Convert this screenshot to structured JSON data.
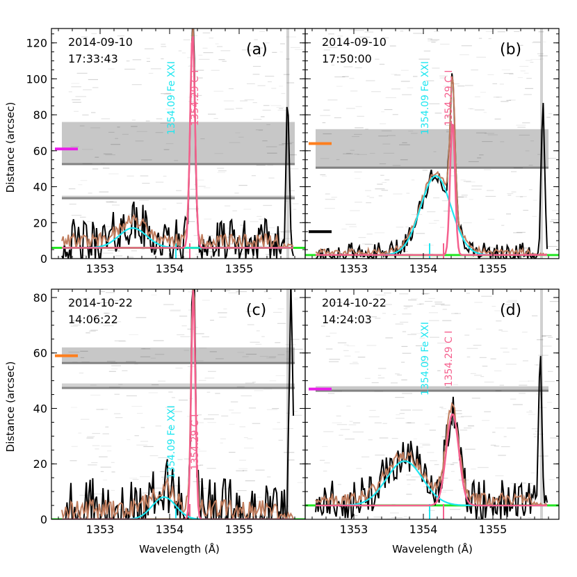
{
  "chart_data": {
    "type": "line",
    "xlabel": "Wavelength (Å)",
    "ylabel": "Distance (arcsec)",
    "x_ticks": [
      1353,
      1354,
      1355
    ],
    "xlim": [
      1352.3,
      1355.95
    ],
    "colors": {
      "observed": "#000000",
      "total_fit": "#c07d5e",
      "fe_fit": "#1ee6f0",
      "c_fit": "#f5608e",
      "background": "#22e622",
      "marker_magenta": "#e81ee8",
      "marker_orange": "#ff7f1e"
    },
    "panels": [
      {
        "id": "a",
        "label": "(a)",
        "date": "2014-09-10",
        "time": "17:33:43",
        "ylim": [
          0,
          128
        ],
        "y_ticks": [
          0,
          20,
          40,
          60,
          80,
          100,
          120
        ],
        "line_labels": [
          "1354.09 Fe XXI",
          "1354.29 C I"
        ],
        "band_rows": [
          [
            52,
            76
          ],
          [
            33,
            35
          ]
        ],
        "marker": {
          "color": "magenta",
          "y": 61,
          "x": [
            1352.35,
            1352.68
          ]
        },
        "background_level": 6,
        "fe": {
          "center": 1353.47,
          "amp": 11,
          "sigma": 0.2
        },
        "c": {
          "center": 1354.33,
          "amp": 120,
          "sigma": 0.035
        },
        "ticks_at": [
          1354.09,
          1354.29
        ],
        "edge_peak": {
          "center": 1355.7,
          "height": 86
        },
        "noise_amp": 14
      },
      {
        "id": "b",
        "label": "(b)",
        "date": "2014-09-10",
        "time": "17:50:00",
        "ylim": [
          0,
          128
        ],
        "y_ticks": [
          0,
          20,
          40,
          60,
          80,
          100,
          120
        ],
        "line_labels": [
          "1354.09 Fe XXI",
          "1354.29 C I"
        ],
        "band_rows": [
          [
            50,
            72
          ]
        ],
        "marker": {
          "color": "orange",
          "y": 64,
          "x": [
            1352.35,
            1352.68
          ]
        },
        "marker2": {
          "color": "black",
          "y": 15,
          "x": [
            1352.35,
            1352.68
          ]
        },
        "background_level": 2,
        "fe": {
          "center": 1354.18,
          "amp": 44,
          "sigma": 0.22
        },
        "c": {
          "center": 1354.42,
          "amp": 75,
          "sigma": 0.035
        },
        "ticks_at": [
          1354.09,
          1354.29
        ],
        "edge_peak": {
          "center": 1355.72,
          "height": 81
        },
        "noise_amp": 6
      },
      {
        "id": "c",
        "label": "(c)",
        "date": "2014-10-22",
        "time": "14:06:22",
        "ylim": [
          0,
          83
        ],
        "y_ticks": [
          0,
          20,
          40,
          60,
          80
        ],
        "line_labels": [
          "1354.09 Fe XXI",
          "1354.29 C I"
        ],
        "band_rows": [
          [
            56,
            62
          ],
          [
            47,
            49
          ]
        ],
        "marker": {
          "color": "orange",
          "y": 59,
          "x": [
            1352.35,
            1352.68
          ]
        },
        "background_level": 0,
        "fe": {
          "center": 1353.92,
          "amp": 8,
          "sigma": 0.17
        },
        "c": {
          "center": 1354.34,
          "amp": 83,
          "sigma": 0.03
        },
        "ticks_at": [
          1354.09,
          1354.29
        ],
        "edge_peak": {
          "center": 1355.75,
          "height": 78
        },
        "noise_amp": 13
      },
      {
        "id": "d",
        "label": "(d)",
        "date": "2014-10-22",
        "time": "14:24:03",
        "ylim": [
          0,
          83
        ],
        "y_ticks": [
          0,
          20,
          40,
          60,
          80
        ],
        "line_labels": [
          "1354.09 Fe XXI",
          "1354.29 C I"
        ],
        "band_rows": [
          [
            46,
            48
          ]
        ],
        "marker": {
          "color": "magenta",
          "y": 47,
          "x": [
            1352.35,
            1352.68
          ]
        },
        "background_level": 5,
        "fe": {
          "center": 1353.73,
          "amp": 16,
          "sigma": 0.26
        },
        "c": {
          "center": 1354.42,
          "amp": 33,
          "sigma": 0.09
        },
        "ticks_at": [
          1354.09,
          1354.29
        ],
        "edge_peak": {
          "center": 1355.68,
          "height": 52
        },
        "noise_amp": 8
      }
    ]
  }
}
